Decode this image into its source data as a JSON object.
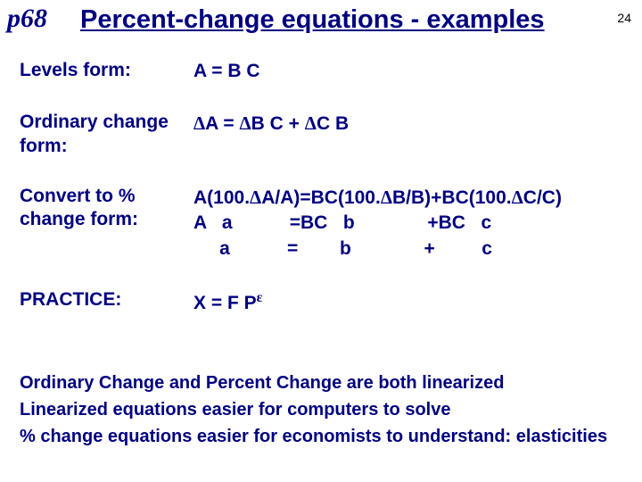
{
  "page_ref": "p68",
  "title": "Percent-change equations - examples",
  "slide_number": "24",
  "rows": [
    {
      "label": "Levels form:",
      "eq_html": "A = B C"
    },
    {
      "label": "Ordinary\nchange form:",
      "eq_html": "<span class='sym'>Δ</span>A = <span class='sym'>Δ</span>B C + <span class='sym'>Δ</span>C B"
    },
    {
      "label": "Convert to %\nchange form:",
      "eq_html": "A(100.<span class='sym'>Δ</span>A/A)=BC(100.<span class='sym'>Δ</span>B/B)+BC(100.<span class='sym'>Δ</span>C/C)\nA   a           =BC   b              +BC   c\n     a           =        b              +         c"
    },
    {
      "label": "PRACTICE:",
      "eq_html": "X = F P<sup><span class='sym'>ε</span></sup>"
    }
  ],
  "footer_lines": [
    "Ordinary Change and Percent Change are both linearized",
    "Linearized equations easier for computers to solve",
    "% change equations easier for economists to understand: elasticities"
  ],
  "colors": {
    "text": "#000080",
    "slide_num": "#000000",
    "background": "#ffffff"
  }
}
